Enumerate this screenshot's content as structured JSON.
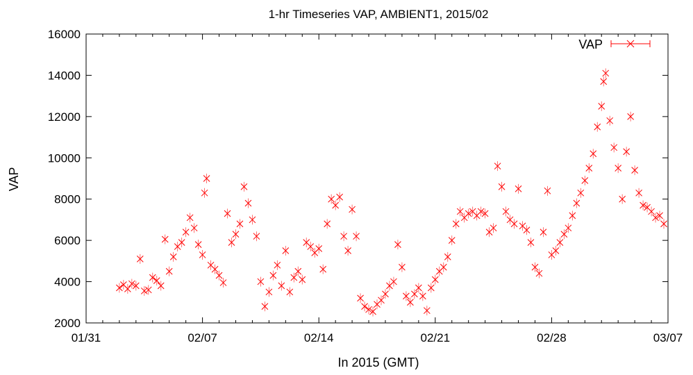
{
  "chart_data": {
    "type": "scatter",
    "title": "1-hr Timeseries VAP, AMBIENT1, 2015/02",
    "xlabel": "In 2015 (GMT)",
    "ylabel": "VAP",
    "x_range": [
      "2015-01-31",
      "2015-03-07"
    ],
    "ylim": [
      2000,
      16000
    ],
    "x_ticks": [
      {
        "date": "2015-01-31",
        "label": "01/31"
      },
      {
        "date": "2015-02-07",
        "label": "02/07"
      },
      {
        "date": "2015-02-14",
        "label": "02/14"
      },
      {
        "date": "2015-02-21",
        "label": "02/21"
      },
      {
        "date": "2015-02-28",
        "label": "02/28"
      },
      {
        "date": "2015-03-07",
        "label": "03/07"
      }
    ],
    "y_ticks": [
      2000,
      4000,
      6000,
      8000,
      10000,
      12000,
      14000,
      16000
    ],
    "grid": false,
    "legend_position": "top-right",
    "marker": "x with error bars",
    "color": "#ff0000",
    "series": [
      {
        "name": "VAP",
        "points": [
          [
            "2015-02-02 00:00",
            3700
          ],
          [
            "2015-02-02 06:00",
            3850
          ],
          [
            "2015-02-02 12:00",
            3650
          ],
          [
            "2015-02-02 18:00",
            3900
          ],
          [
            "2015-02-03 00:00",
            3800
          ],
          [
            "2015-02-03 06:00",
            5100
          ],
          [
            "2015-02-03 12:00",
            3550
          ],
          [
            "2015-02-03 18:00",
            3600
          ],
          [
            "2015-02-04 00:00",
            4200
          ],
          [
            "2015-02-04 06:00",
            4050
          ],
          [
            "2015-02-04 12:00",
            3800
          ],
          [
            "2015-02-04 18:00",
            6050
          ],
          [
            "2015-02-05 00:00",
            4500
          ],
          [
            "2015-02-05 06:00",
            5200
          ],
          [
            "2015-02-05 12:00",
            5700
          ],
          [
            "2015-02-05 18:00",
            5900
          ],
          [
            "2015-02-06 00:00",
            6400
          ],
          [
            "2015-02-06 06:00",
            7100
          ],
          [
            "2015-02-06 12:00",
            6600
          ],
          [
            "2015-02-06 18:00",
            5800
          ],
          [
            "2015-02-07 00:00",
            5300
          ],
          [
            "2015-02-07 03:00",
            8300
          ],
          [
            "2015-02-07 06:00",
            9000
          ],
          [
            "2015-02-07 12:00",
            4800
          ],
          [
            "2015-02-07 18:00",
            4600
          ],
          [
            "2015-02-08 00:00",
            4300
          ],
          [
            "2015-02-08 06:00",
            3950
          ],
          [
            "2015-02-08 12:00",
            7300
          ],
          [
            "2015-02-08 18:00",
            5900
          ],
          [
            "2015-02-09 00:00",
            6300
          ],
          [
            "2015-02-09 06:00",
            6800
          ],
          [
            "2015-02-09 12:00",
            8600
          ],
          [
            "2015-02-09 18:00",
            7800
          ],
          [
            "2015-02-10 00:00",
            7000
          ],
          [
            "2015-02-10 06:00",
            6200
          ],
          [
            "2015-02-10 12:00",
            4000
          ],
          [
            "2015-02-10 18:00",
            2800
          ],
          [
            "2015-02-11 00:00",
            3500
          ],
          [
            "2015-02-11 06:00",
            4300
          ],
          [
            "2015-02-11 12:00",
            4800
          ],
          [
            "2015-02-11 18:00",
            3800
          ],
          [
            "2015-02-12 00:00",
            5500
          ],
          [
            "2015-02-12 06:00",
            3500
          ],
          [
            "2015-02-12 12:00",
            4200
          ],
          [
            "2015-02-12 18:00",
            4500
          ],
          [
            "2015-02-13 00:00",
            4100
          ],
          [
            "2015-02-13 06:00",
            5900
          ],
          [
            "2015-02-13 12:00",
            5700
          ],
          [
            "2015-02-13 18:00",
            5400
          ],
          [
            "2015-02-14 00:00",
            5600
          ],
          [
            "2015-02-14 06:00",
            4600
          ],
          [
            "2015-02-14 12:00",
            6800
          ],
          [
            "2015-02-14 18:00",
            8000
          ],
          [
            "2015-02-15 00:00",
            7700
          ],
          [
            "2015-02-15 06:00",
            8100
          ],
          [
            "2015-02-15 12:00",
            6200
          ],
          [
            "2015-02-15 18:00",
            5500
          ],
          [
            "2015-02-16 00:00",
            7500
          ],
          [
            "2015-02-16 06:00",
            6200
          ],
          [
            "2015-02-16 12:00",
            3200
          ],
          [
            "2015-02-16 18:00",
            2800
          ],
          [
            "2015-02-17 00:00",
            2650
          ],
          [
            "2015-02-17 06:00",
            2550
          ],
          [
            "2015-02-17 12:00",
            2900
          ],
          [
            "2015-02-17 18:00",
            3100
          ],
          [
            "2015-02-18 00:00",
            3400
          ],
          [
            "2015-02-18 06:00",
            3800
          ],
          [
            "2015-02-18 12:00",
            4000
          ],
          [
            "2015-02-18 18:00",
            5800
          ],
          [
            "2015-02-19 00:00",
            4700
          ],
          [
            "2015-02-19 06:00",
            3300
          ],
          [
            "2015-02-19 12:00",
            3000
          ],
          [
            "2015-02-19 18:00",
            3400
          ],
          [
            "2015-02-20 00:00",
            3700
          ],
          [
            "2015-02-20 06:00",
            3300
          ],
          [
            "2015-02-20 12:00",
            2600
          ],
          [
            "2015-02-20 18:00",
            3700
          ],
          [
            "2015-02-21 00:00",
            4100
          ],
          [
            "2015-02-21 06:00",
            4500
          ],
          [
            "2015-02-21 12:00",
            4700
          ],
          [
            "2015-02-21 18:00",
            5200
          ],
          [
            "2015-02-22 00:00",
            6000
          ],
          [
            "2015-02-22 06:00",
            6800
          ],
          [
            "2015-02-22 12:00",
            7400
          ],
          [
            "2015-02-22 18:00",
            7100
          ],
          [
            "2015-02-23 00:00",
            7300
          ],
          [
            "2015-02-23 06:00",
            7400
          ],
          [
            "2015-02-23 12:00",
            7200
          ],
          [
            "2015-02-23 18:00",
            7400
          ],
          [
            "2015-02-24 00:00",
            7300
          ],
          [
            "2015-02-24 06:00",
            6400
          ],
          [
            "2015-02-24 12:00",
            6600
          ],
          [
            "2015-02-24 18:00",
            9600
          ],
          [
            "2015-02-25 00:00",
            8600
          ],
          [
            "2015-02-25 06:00",
            7400
          ],
          [
            "2015-02-25 12:00",
            7000
          ],
          [
            "2015-02-25 18:00",
            6800
          ],
          [
            "2015-02-26 00:00",
            8500
          ],
          [
            "2015-02-26 06:00",
            6700
          ],
          [
            "2015-02-26 12:00",
            6500
          ],
          [
            "2015-02-26 18:00",
            5900
          ],
          [
            "2015-02-27 00:00",
            4700
          ],
          [
            "2015-02-27 06:00",
            4400
          ],
          [
            "2015-02-27 12:00",
            6400
          ],
          [
            "2015-02-27 18:00",
            8400
          ],
          [
            "2015-02-28 00:00",
            5300
          ],
          [
            "2015-02-28 06:00",
            5500
          ],
          [
            "2015-02-28 12:00",
            5900
          ],
          [
            "2015-02-28 18:00",
            6300
          ],
          [
            "2015-03-01 00:00",
            6600
          ],
          [
            "2015-03-01 06:00",
            7200
          ],
          [
            "2015-03-01 12:00",
            7800
          ],
          [
            "2015-03-01 18:00",
            8300
          ],
          [
            "2015-03-02 00:00",
            8900
          ],
          [
            "2015-03-02 06:00",
            9500
          ],
          [
            "2015-03-02 12:00",
            10200
          ],
          [
            "2015-03-02 18:00",
            11500
          ],
          [
            "2015-03-03 00:00",
            12500
          ],
          [
            "2015-03-03 03:00",
            13700
          ],
          [
            "2015-03-03 06:00",
            14100
          ],
          [
            "2015-03-03 12:00",
            11800
          ],
          [
            "2015-03-03 18:00",
            10500
          ],
          [
            "2015-03-04 00:00",
            9500
          ],
          [
            "2015-03-04 06:00",
            8000
          ],
          [
            "2015-03-04 12:00",
            10300
          ],
          [
            "2015-03-04 18:00",
            12000
          ],
          [
            "2015-03-05 00:00",
            9400
          ],
          [
            "2015-03-05 06:00",
            8300
          ],
          [
            "2015-03-05 12:00",
            7700
          ],
          [
            "2015-03-05 18:00",
            7600
          ],
          [
            "2015-03-06 00:00",
            7400
          ],
          [
            "2015-03-06 06:00",
            7100
          ],
          [
            "2015-03-06 12:00",
            7200
          ],
          [
            "2015-03-06 18:00",
            6800
          ]
        ]
      }
    ]
  }
}
